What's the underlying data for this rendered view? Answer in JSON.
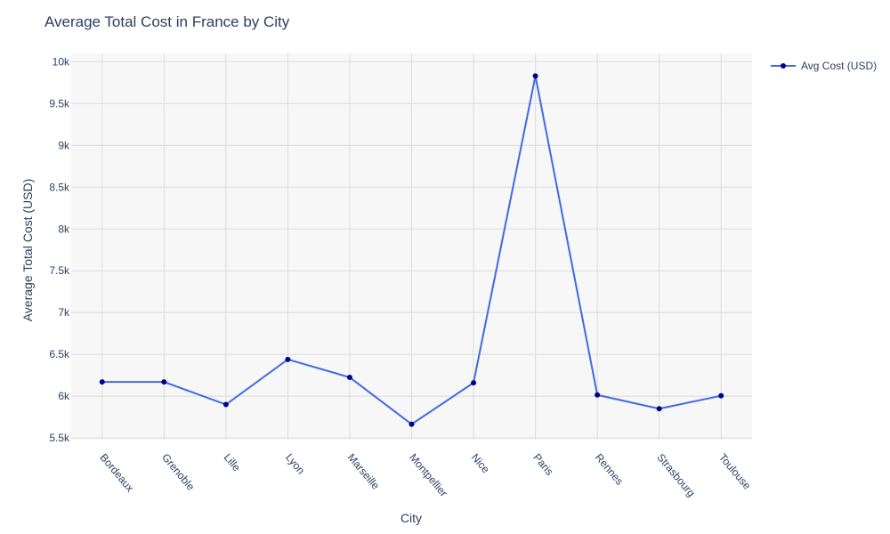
{
  "chart_data": {
    "type": "line",
    "title": "Average Total Cost in France by City",
    "xlabel": "City",
    "ylabel": "Average Total Cost (USD)",
    "categories": [
      "Bordeaux",
      "Grenoble",
      "Lille",
      "Lyon",
      "Marseille",
      "Montpellier",
      "Nice",
      "Paris",
      "Rennes",
      "Strasbourg",
      "Toulouse"
    ],
    "series": [
      {
        "name": "Avg Cost (USD)",
        "values": [
          6170,
          6170,
          5900,
          6440,
          6225,
          5665,
          6160,
          9830,
          6015,
          5850,
          6005
        ],
        "line_color": "#4169e1",
        "marker_color": "#00008b"
      }
    ],
    "ylim": [
      5480,
      10100
    ],
    "yticks": [
      5500,
      6000,
      6500,
      7000,
      7500,
      8000,
      8500,
      9000,
      9500,
      10000
    ],
    "ytick_labels": [
      "5.5k",
      "6k",
      "6.5k",
      "7k",
      "7.5k",
      "8k",
      "8.5k",
      "9k",
      "9.5k",
      "10k"
    ],
    "grid": true,
    "legend_position": "top-right",
    "plot_background": "#f7f7f7",
    "grid_color": "#dcdcdc"
  }
}
